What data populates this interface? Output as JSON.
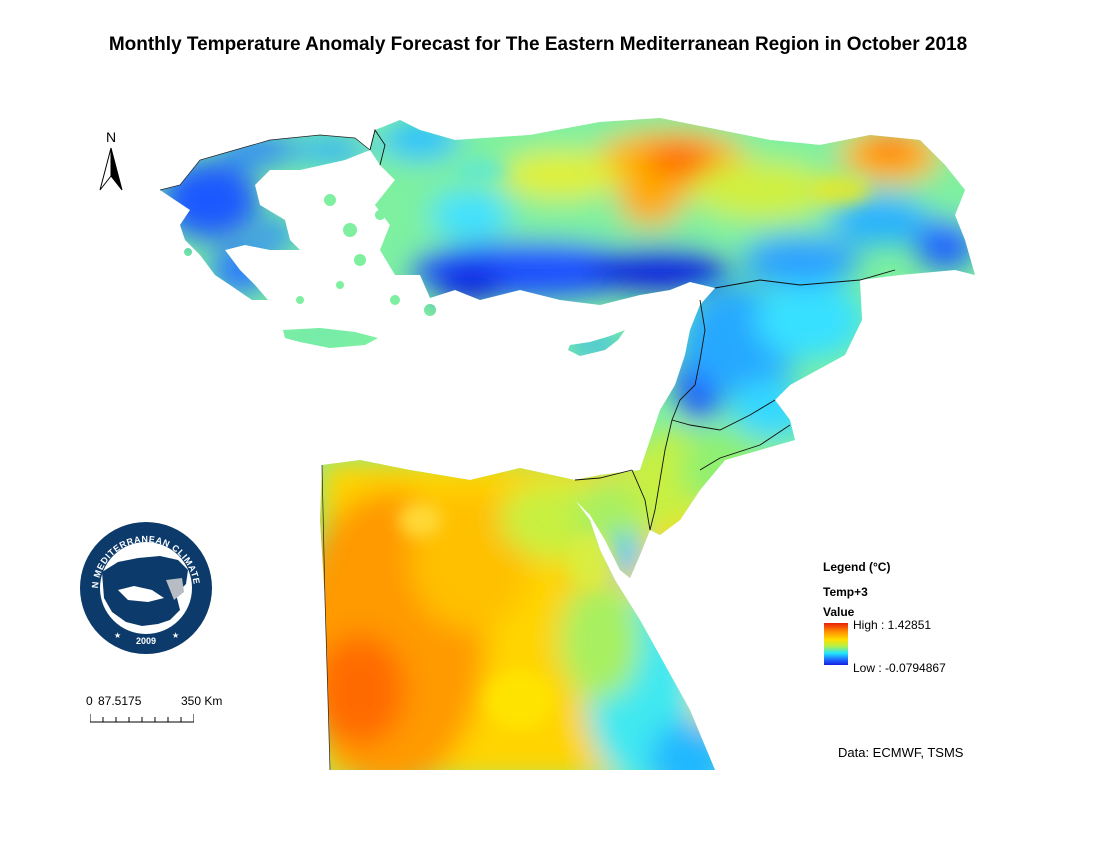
{
  "title": "Monthly Temperature Anomaly Forecast for The Eastern Mediterranean Region in October 2018",
  "north_arrow": {
    "label": "N",
    "icon": "north-arrow-icon"
  },
  "logo": {
    "ring_text": "EASTERN MEDITERRANEAN CLIMATE CENTRE",
    "year": "2009",
    "colors": {
      "ring": "#0b3a6b",
      "inner": "#ffffff",
      "land": "#0b3a6b"
    }
  },
  "scale_bar": {
    "ticks": [
      "0",
      "87.5175",
      "350"
    ],
    "unit": "Km"
  },
  "legend": {
    "title": "Legend (°C)",
    "layer": "Temp+3",
    "field": "Value",
    "high_label": "High : 1.42851",
    "low_label": "Low : -0.0794867",
    "high_value": 1.42851,
    "low_value": -0.0794867,
    "ramp_colors": [
      "#e8200a",
      "#ff8c00",
      "#ffe000",
      "#b6f046",
      "#22e6ff",
      "#1e64ff",
      "#1420e0"
    ]
  },
  "source": "Data:  ECMWF, TSMS"
}
